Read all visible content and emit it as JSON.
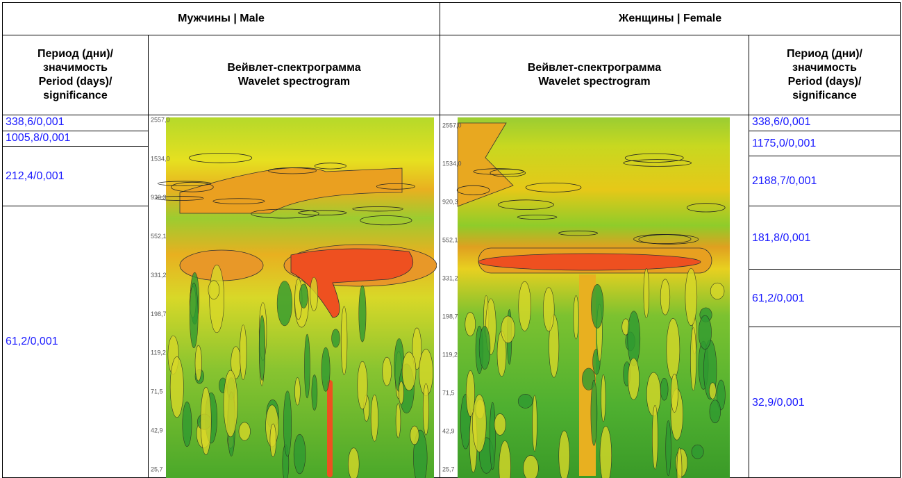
{
  "header": {
    "male": "Мужчины | Male",
    "female": "Женщины | Female"
  },
  "subheader": {
    "period_left": [
      "Период (дни)/",
      "значимость",
      "Period (days)/",
      "significance"
    ],
    "spectrogram_left": [
      "Вейвлет-спектрограмма",
      "Wavelet spectrogram"
    ],
    "spectrogram_right": [
      "Вейвлет-спектрограмма",
      "Wavelet spectrogram"
    ],
    "period_right": [
      "Период (дни)/",
      "значимость",
      "Period (days)/",
      "significance"
    ]
  },
  "male_periods": [
    "338,6/0,001",
    "1005,8/0,001",
    "212,4/0,001",
    "61,2/0,001"
  ],
  "female_periods": [
    "338,6/0,001",
    "1175,0/0,001",
    "2188,7/0,001",
    "181,8/0,001",
    "61,2/0,001",
    "32,9/0,001"
  ],
  "male_axis": [
    "2557,0",
    "1534,0",
    "920,3",
    "552,1",
    "331,2",
    "198,7",
    "119,2",
    "71,5",
    "42,9",
    "25,7"
  ],
  "female_axis": [
    "2557,0",
    "1534,0",
    "920,3",
    "552,1",
    "331,2",
    "198,7",
    "119,2",
    "71,5",
    "42,9",
    "25,7"
  ]
}
